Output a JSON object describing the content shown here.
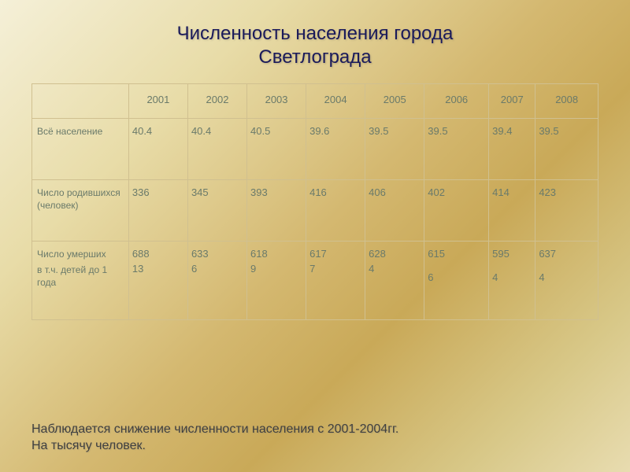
{
  "title_line1": "Численность населения города",
  "title_line2": "Светлограда",
  "years": [
    "2001",
    "2002",
    "2003",
    "2004",
    "2005",
    "2006",
    "2007",
    "2008"
  ],
  "rows": {
    "total_pop": {
      "label": "Всё население",
      "vals": [
        "40.4",
        "40.4",
        "40.5",
        "39.6",
        "39.5",
        "39.5",
        "39.4",
        "39.5"
      ]
    },
    "births": {
      "label": "Число родившихся (человек)",
      "vals": [
        "336",
        "345",
        "393",
        "416",
        "406",
        "402",
        "414",
        "423"
      ]
    },
    "deaths": {
      "label1": "Число умерших",
      "label2": "в т.ч. детей до 1 года",
      "vals_main": [
        "688",
        "633",
        "618",
        "617",
        "628",
        "615",
        "595",
        "637"
      ],
      "vals_sub": [
        "13",
        "6",
        "9",
        "7",
        "4",
        "6",
        "4",
        "4"
      ]
    }
  },
  "footer_line1": "Наблюдается снижение численности населения с 2001-2004гг.",
  "footer_line2": "На тысячу человек.",
  "style": {
    "title_color": "#1a1a5a",
    "title_fontsize": 24,
    "cell_text_color": "#6a7a6a",
    "cell_fontsize": 13,
    "border_color": "#d0c090",
    "footer_color": "#404040",
    "footer_fontsize": 16,
    "bg_gradient": [
      "#f5f0d8",
      "#e8dca8",
      "#d4b870",
      "#c9a958",
      "#d8c888",
      "#e8dcb0"
    ]
  }
}
